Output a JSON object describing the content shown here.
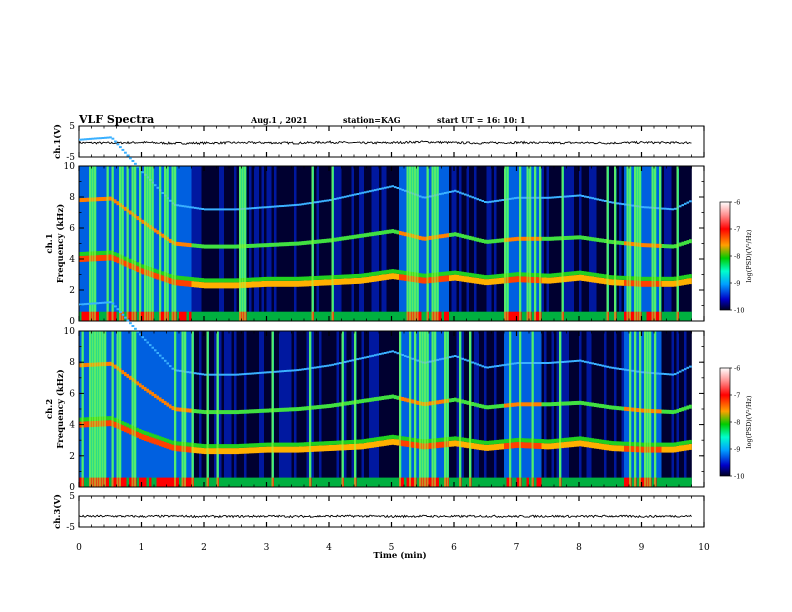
{
  "header": {
    "title": "VLF Spectra",
    "date": "Aug.1 , 2021",
    "station": "station=KAG",
    "start_ut": "start UT = 16: 10: 1"
  },
  "chart_data": [
    {
      "type": "line",
      "name": "ch1-waveform",
      "ylabel": "ch.1(V)",
      "ylim": [
        -5,
        5
      ],
      "yticks": [
        "5",
        "-5"
      ],
      "xlim": [
        0,
        10
      ],
      "x": [
        0,
        0.5,
        1,
        1.5,
        2,
        2.5,
        3,
        3.5,
        4,
        4.5,
        5,
        5.5,
        6,
        6.5,
        7,
        7.5,
        8,
        8.5,
        9,
        9.5,
        9.8
      ],
      "values": [
        -0.4,
        -0.5,
        -0.3,
        -0.6,
        -0.5,
        -0.4,
        -0.4,
        -0.5,
        -0.2,
        -0.5,
        -0.4,
        -0.1,
        -0.4,
        -0.5,
        -0.3,
        -0.5,
        -0.4,
        -0.5,
        -0.3,
        -0.4,
        -0.4
      ]
    },
    {
      "type": "heatmap",
      "name": "ch1-spectrogram",
      "ylabel": "ch.1\nFrequency (kHz)",
      "ylim": [
        0,
        10
      ],
      "yticks": [
        "0",
        "2",
        "4",
        "6",
        "8",
        "10"
      ],
      "xlim": [
        0,
        10
      ],
      "trace_x": [
        0,
        0.5,
        1,
        1.5,
        2,
        2.5,
        3,
        3.5,
        4,
        4.5,
        5,
        5.5,
        6,
        6.5,
        7,
        7.5,
        8,
        8.5,
        9,
        9.5,
        9.8
      ],
      "lower_band_khz": [
        4.0,
        4.1,
        3.2,
        2.5,
        2.3,
        2.3,
        2.4,
        2.4,
        2.5,
        2.6,
        2.9,
        2.6,
        2.8,
        2.5,
        2.7,
        2.6,
        2.8,
        2.5,
        2.4,
        2.4,
        2.6
      ],
      "upper_band_khz": [
        7.8,
        7.9,
        6.4,
        5.0,
        4.8,
        4.8,
        4.9,
        5.0,
        5.2,
        5.5,
        5.8,
        5.3,
        5.6,
        5.1,
        5.3,
        5.3,
        5.4,
        5.1,
        4.9,
        4.8,
        5.2
      ]
    },
    {
      "type": "heatmap",
      "name": "ch2-spectrogram",
      "ylabel": "ch.2\nFrequency (kHz)",
      "ylim": [
        0,
        10
      ],
      "yticks": [
        "0",
        "2",
        "4",
        "6",
        "8",
        "10"
      ],
      "xlim": [
        0,
        10
      ],
      "trace_x": [
        0,
        0.5,
        1,
        1.5,
        2,
        2.5,
        3,
        3.5,
        4,
        4.5,
        5,
        5.5,
        6,
        6.5,
        7,
        7.5,
        8,
        8.5,
        9,
        9.5,
        9.8
      ],
      "lower_band_khz": [
        4.0,
        4.1,
        3.2,
        2.5,
        2.3,
        2.3,
        2.4,
        2.4,
        2.5,
        2.6,
        2.9,
        2.6,
        2.8,
        2.5,
        2.7,
        2.6,
        2.8,
        2.5,
        2.4,
        2.4,
        2.6
      ],
      "upper_band_khz": [
        7.8,
        7.9,
        6.4,
        5.0,
        4.8,
        4.8,
        4.9,
        5.0,
        5.2,
        5.5,
        5.8,
        5.3,
        5.6,
        5.1,
        5.3,
        5.3,
        5.4,
        5.1,
        4.9,
        4.8,
        5.2
      ]
    },
    {
      "type": "line",
      "name": "ch3-waveform",
      "ylabel": "ch.3(V)",
      "ylim": [
        -5,
        5
      ],
      "yticks": [
        "5",
        "-5"
      ],
      "xlim": [
        0,
        10
      ],
      "x": [
        0,
        0.5,
        1,
        1.5,
        2,
        2.5,
        3,
        3.5,
        4,
        4.5,
        5,
        5.5,
        6,
        6.5,
        7,
        7.5,
        8,
        8.5,
        9,
        9.5,
        9.8
      ],
      "values": [
        -1.6,
        -1.5,
        -1.6,
        -1.5,
        -1.6,
        -1.6,
        -1.5,
        -1.6,
        -1.5,
        -1.5,
        -1.6,
        -1.5,
        -1.6,
        -1.5,
        -1.6,
        -1.5,
        -1.6,
        -1.5,
        -1.6,
        -1.5,
        -1.5
      ]
    }
  ],
  "x_axis": {
    "label": "Time (min)",
    "ticks": [
      "0",
      "1",
      "2",
      "3",
      "4",
      "5",
      "6",
      "7",
      "8",
      "9",
      "10"
    ]
  },
  "colorbar": {
    "label": "log(PSD)(V²/Hz)",
    "ticks": [
      "-6",
      "-7",
      "-8",
      "-9",
      "-10"
    ],
    "colors": [
      "#ffffff",
      "#ff0000",
      "#ffa000",
      "#00cc00",
      "#00ffcc",
      "#00a0ff",
      "#0000c8",
      "#000000"
    ]
  }
}
